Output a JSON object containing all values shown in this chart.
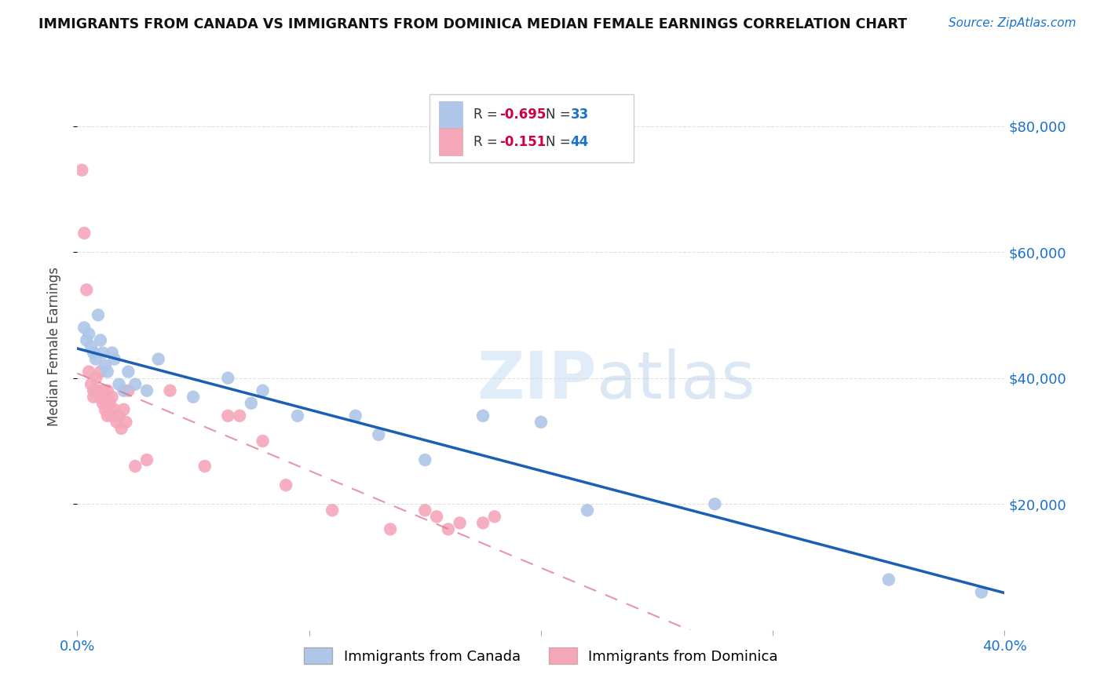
{
  "title": "IMMIGRANTS FROM CANADA VS IMMIGRANTS FROM DOMINICA MEDIAN FEMALE EARNINGS CORRELATION CHART",
  "source": "Source: ZipAtlas.com",
  "ylabel": "Median Female Earnings",
  "xlim": [
    0.0,
    0.4
  ],
  "ylim": [
    0,
    90000
  ],
  "background_color": "#ffffff",
  "grid_color": "#dddddd",
  "canada_color": "#aec6e8",
  "dominica_color": "#f4a7b9",
  "canada_line_color": "#1a5fb4",
  "dominica_line_color": "#e07090",
  "canada_R": -0.695,
  "canada_N": 33,
  "dominica_R": -0.151,
  "dominica_N": 44,
  "canada_x": [
    0.003,
    0.004,
    0.005,
    0.006,
    0.007,
    0.008,
    0.009,
    0.01,
    0.011,
    0.012,
    0.013,
    0.015,
    0.016,
    0.018,
    0.02,
    0.022,
    0.025,
    0.03,
    0.035,
    0.05,
    0.065,
    0.075,
    0.08,
    0.095,
    0.12,
    0.13,
    0.15,
    0.175,
    0.2,
    0.22,
    0.275,
    0.35,
    0.39
  ],
  "canada_y": [
    48000,
    46000,
    47000,
    45000,
    44000,
    43000,
    50000,
    46000,
    44000,
    42000,
    41000,
    44000,
    43000,
    39000,
    38000,
    41000,
    39000,
    38000,
    43000,
    37000,
    40000,
    36000,
    38000,
    34000,
    34000,
    31000,
    27000,
    34000,
    33000,
    19000,
    20000,
    8000,
    6000
  ],
  "dominica_x": [
    0.002,
    0.003,
    0.004,
    0.005,
    0.006,
    0.007,
    0.007,
    0.008,
    0.008,
    0.009,
    0.01,
    0.01,
    0.011,
    0.011,
    0.012,
    0.012,
    0.013,
    0.013,
    0.014,
    0.015,
    0.015,
    0.016,
    0.017,
    0.018,
    0.019,
    0.02,
    0.021,
    0.022,
    0.025,
    0.03,
    0.04,
    0.055,
    0.065,
    0.07,
    0.08,
    0.09,
    0.11,
    0.135,
    0.15,
    0.155,
    0.16,
    0.165,
    0.175,
    0.18
  ],
  "dominica_y": [
    73000,
    63000,
    54000,
    41000,
    39000,
    37000,
    38000,
    38000,
    40000,
    38000,
    37000,
    41000,
    38000,
    36000,
    37000,
    35000,
    38000,
    34000,
    36000,
    37000,
    34000,
    35000,
    33000,
    34000,
    32000,
    35000,
    33000,
    38000,
    26000,
    27000,
    38000,
    26000,
    34000,
    34000,
    30000,
    23000,
    19000,
    16000,
    19000,
    18000,
    16000,
    17000,
    17000,
    18000
  ]
}
